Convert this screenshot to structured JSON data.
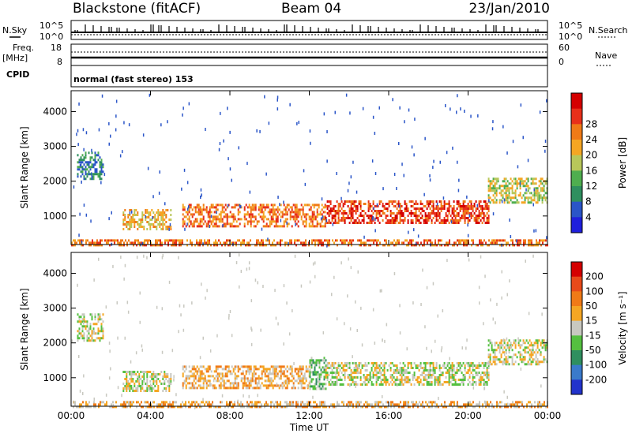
{
  "header": {
    "title": "Blackstone (fitACF)",
    "beam": "Beam 04",
    "date": "23/Jan/2010"
  },
  "summary_panel": {
    "left_label_top": "N.Sky",
    "left_label_freq": "Freq.",
    "left_label_mhz": "[MHz]",
    "left_label_cpid": "CPID",
    "right_label_search": "N.Search",
    "right_label_nave": "Nave",
    "noise_ticks": [
      "10^5",
      "10^0"
    ],
    "freq_ticks": [
      "18",
      "8"
    ],
    "nave_ticks": [
      "60",
      "0"
    ],
    "cpid_text": "normal (fast stereo) 153"
  },
  "colors": {
    "axis": "#000000",
    "power_scale": [
      "#1f1fdc",
      "#2a55c8",
      "#2f8f5f",
      "#4fae4f",
      "#b8c75a",
      "#f5a623",
      "#f07a17",
      "#e8301a",
      "#d40000"
    ],
    "velocity_scale": [
      "#2233cc",
      "#3a7acb",
      "#2f8f5f",
      "#55c040",
      "#c8c8c0",
      "#f5a623",
      "#f07a17",
      "#e84a1a",
      "#d40000"
    ]
  },
  "chart_data": [
    {
      "type": "heatmap",
      "title": "",
      "xlabel": "Time UT",
      "ylabel": "Slant Range [km]",
      "colorbar_label": "Power [dB]",
      "x_ticks": [
        "00:00",
        "04:00",
        "08:00",
        "12:00",
        "16:00",
        "20:00",
        "00:00"
      ],
      "y_ticks": [
        1000,
        2000,
        3000,
        4000
      ],
      "ylim": [
        180,
        4600
      ],
      "colorbar_ticks": [
        4,
        8,
        12,
        16,
        20,
        24,
        28
      ],
      "echo_bands": [
        {
          "start_h": 0.3,
          "end_h": 1.6,
          "range_low": 2050,
          "range_high": 2850,
          "level": 2
        },
        {
          "start_h": 2.6,
          "end_h": 5.0,
          "range_low": 650,
          "range_high": 1200,
          "level": 5
        },
        {
          "start_h": 5.6,
          "end_h": 12.8,
          "range_low": 700,
          "range_high": 1350,
          "level": 6
        },
        {
          "start_h": 12.8,
          "end_h": 21.0,
          "range_low": 800,
          "range_high": 1450,
          "level": 7
        },
        {
          "start_h": 21.0,
          "end_h": 24.0,
          "range_low": 1400,
          "range_high": 2100,
          "level": 4
        },
        {
          "start_h": 0.0,
          "end_h": 24.0,
          "range_low": 180,
          "range_high": 330,
          "level": 6
        }
      ]
    },
    {
      "type": "heatmap",
      "title": "",
      "xlabel": "Time UT",
      "ylabel": "Slant Range [km]",
      "colorbar_label": "Velocity [m s⁻¹]",
      "x_ticks": [
        "00:00",
        "04:00",
        "08:00",
        "12:00",
        "16:00",
        "20:00",
        "00:00"
      ],
      "y_ticks": [
        1000,
        2000,
        3000,
        4000
      ],
      "ylim": [
        180,
        4600
      ],
      "colorbar_ticks": [
        200,
        100,
        50,
        15,
        -15,
        -50,
        -100,
        -200
      ],
      "echo_bands": [
        {
          "start_h": 0.3,
          "end_h": 1.6,
          "range_low": 2050,
          "range_high": 2850,
          "level": 4
        },
        {
          "start_h": 2.6,
          "end_h": 5.0,
          "range_low": 650,
          "range_high": 1200,
          "level": 4
        },
        {
          "start_h": 5.6,
          "end_h": 12.0,
          "range_low": 700,
          "range_high": 1350,
          "level": 5
        },
        {
          "start_h": 12.0,
          "end_h": 12.8,
          "range_low": 700,
          "range_high": 1600,
          "level": 3
        },
        {
          "start_h": 12.8,
          "end_h": 21.0,
          "range_low": 800,
          "range_high": 1450,
          "level": 4
        },
        {
          "start_h": 21.0,
          "end_h": 24.0,
          "range_low": 1400,
          "range_high": 2100,
          "level": 4
        },
        {
          "start_h": 0.0,
          "end_h": 24.0,
          "range_low": 180,
          "range_high": 330,
          "level": 5
        }
      ]
    }
  ]
}
